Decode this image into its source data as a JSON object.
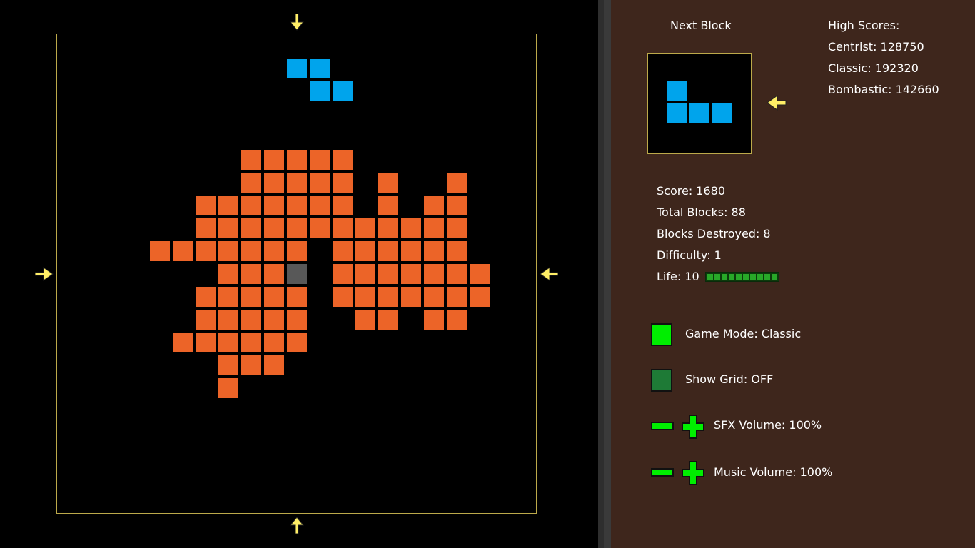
{
  "next_block": {
    "label": "Next Block"
  },
  "high_scores": {
    "heading": "High Scores:",
    "entries": [
      {
        "text": "Centrist: 128750"
      },
      {
        "text": "Classic: 192320"
      },
      {
        "text": "Bombastic: 142660"
      }
    ]
  },
  "stats": {
    "score": "Score: 1680",
    "total_blocks": "Total Blocks: 88",
    "blocks_destroyed": "Blocks Destroyed: 8",
    "difficulty": "Difficulty: 1",
    "life": "Life: 10",
    "life_value": 10,
    "life_max": 10
  },
  "settings": {
    "game_mode": "Game Mode: Classic",
    "show_grid": "Show Grid: OFF",
    "sfx_volume": "SFX Volume: 100%",
    "music_volume": "Music Volume: 100%"
  },
  "colors": {
    "orange_block": "#ec6428",
    "blue_block": "#00a4ec",
    "gray_block": "#585858",
    "arrow": "#ffee66",
    "toggle_on": "#00ee00",
    "toggle_off": "#1e7a36",
    "panel_bg": "#3e261c"
  }
}
